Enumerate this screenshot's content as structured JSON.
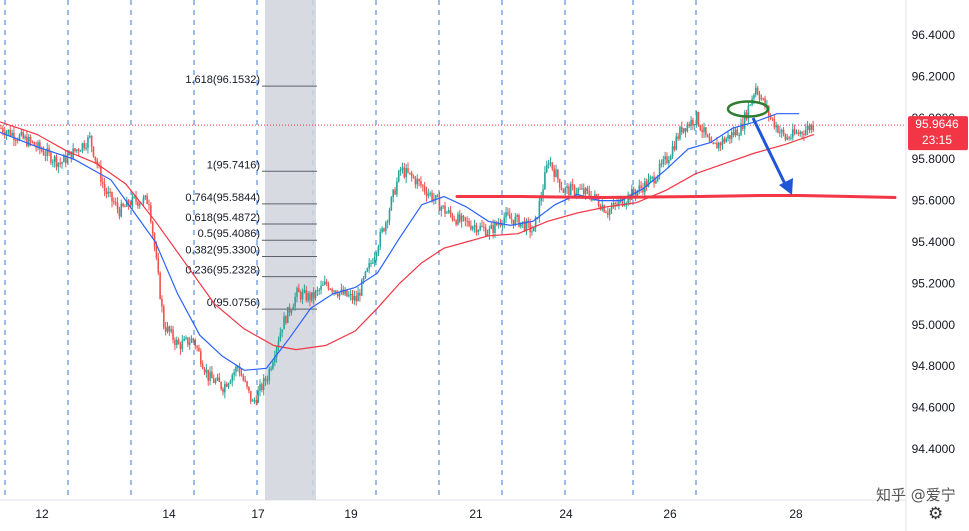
{
  "chart_data": {
    "type": "candlestick",
    "y_axis": {
      "ticks": [
        "96.4000",
        "96.2000",
        "96.0000",
        "95.8000",
        "95.6000",
        "95.4000",
        "95.2000",
        "95.0000",
        "94.8000",
        "94.6000",
        "94.4000"
      ],
      "ylim": [
        94.28,
        96.55
      ]
    },
    "x_axis": {
      "ticks": [
        "12",
        "14",
        "17",
        "19",
        "21",
        "24",
        "26",
        "28"
      ]
    },
    "current_price": {
      "value": "95.9646",
      "countdown": "23:15",
      "level": 95.9646
    },
    "fibonacci": [
      {
        "label": "1.618(96.1532)",
        "value": 96.1532
      },
      {
        "label": "1(95.7416)",
        "value": 95.7416
      },
      {
        "label": "0.764(95.5844)",
        "value": 95.5844
      },
      {
        "label": "0.618(95.4872)",
        "value": 95.4872
      },
      {
        "label": "0.5(95.4086)",
        "value": 95.4086
      },
      {
        "label": "0.382(95.3300)",
        "value": 95.33
      },
      {
        "label": "0.236(95.2328)",
        "value": 95.2328
      },
      {
        "label": "0(95.0756)",
        "value": 95.0756
      }
    ],
    "horizontal_level": 95.62,
    "price_path": [
      [
        0,
        95.95
      ],
      [
        4,
        95.88
      ],
      [
        8,
        95.78
      ],
      [
        12,
        95.9
      ],
      [
        14,
        95.65
      ],
      [
        16,
        95.55
      ],
      [
        18,
        95.6
      ],
      [
        20,
        95.6
      ],
      [
        22,
        95.0
      ],
      [
        24,
        94.9
      ],
      [
        26,
        94.93
      ],
      [
        28,
        94.75
      ],
      [
        30,
        94.7
      ],
      [
        32,
        94.8
      ],
      [
        34,
        94.62
      ],
      [
        36,
        94.75
      ],
      [
        38,
        95.0
      ],
      [
        40,
        95.15
      ],
      [
        42,
        95.13
      ],
      [
        44,
        95.2
      ],
      [
        46,
        95.15
      ],
      [
        48,
        95.12
      ],
      [
        50,
        95.3
      ],
      [
        52,
        95.5
      ],
      [
        54,
        95.75
      ],
      [
        56,
        95.7
      ],
      [
        58,
        95.63
      ],
      [
        60,
        95.55
      ],
      [
        62,
        95.5
      ],
      [
        64,
        95.48
      ],
      [
        66,
        95.45
      ],
      [
        68,
        95.52
      ],
      [
        70,
        95.5
      ],
      [
        72,
        95.45
      ],
      [
        74,
        95.8
      ],
      [
        76,
        95.65
      ],
      [
        78,
        95.65
      ],
      [
        80,
        95.62
      ],
      [
        82,
        95.55
      ],
      [
        84,
        95.6
      ],
      [
        86,
        95.65
      ],
      [
        88,
        95.7
      ],
      [
        90,
        95.8
      ],
      [
        92,
        95.95
      ],
      [
        94,
        96.0
      ],
      [
        96,
        95.85
      ],
      [
        98,
        95.9
      ],
      [
        100,
        95.95
      ],
      [
        102,
        96.15
      ],
      [
        104,
        96.0
      ],
      [
        106,
        95.9
      ],
      [
        108,
        95.93
      ],
      [
        110,
        95.97
      ]
    ],
    "ma_fast": [
      [
        0,
        95.93
      ],
      [
        5,
        95.86
      ],
      [
        10,
        95.8
      ],
      [
        15,
        95.7
      ],
      [
        18,
        95.55
      ],
      [
        21,
        95.4
      ],
      [
        24,
        95.15
      ],
      [
        27,
        94.95
      ],
      [
        30,
        94.85
      ],
      [
        33,
        94.78
      ],
      [
        36,
        94.79
      ],
      [
        39,
        94.93
      ],
      [
        42,
        95.08
      ],
      [
        45,
        95.15
      ],
      [
        48,
        95.18
      ],
      [
        51,
        95.25
      ],
      [
        54,
        95.42
      ],
      [
        57,
        95.58
      ],
      [
        60,
        95.62
      ],
      [
        63,
        95.57
      ],
      [
        66,
        95.5
      ],
      [
        69,
        95.48
      ],
      [
        72,
        95.5
      ],
      [
        75,
        95.58
      ],
      [
        78,
        95.63
      ],
      [
        81,
        95.6
      ],
      [
        84,
        95.6
      ],
      [
        87,
        95.66
      ],
      [
        90,
        95.75
      ],
      [
        93,
        95.85
      ],
      [
        96,
        95.88
      ],
      [
        99,
        95.95
      ],
      [
        102,
        95.98
      ],
      [
        105,
        96.02
      ],
      [
        108,
        96.02
      ]
    ],
    "ma_slow": [
      [
        0,
        95.98
      ],
      [
        5,
        95.92
      ],
      [
        9,
        95.84
      ],
      [
        13,
        95.78
      ],
      [
        17,
        95.68
      ],
      [
        21,
        95.5
      ],
      [
        25,
        95.3
      ],
      [
        29,
        95.1
      ],
      [
        33,
        94.98
      ],
      [
        37,
        94.9
      ],
      [
        40,
        94.88
      ],
      [
        44,
        94.9
      ],
      [
        48,
        94.97
      ],
      [
        51,
        95.08
      ],
      [
        54,
        95.2
      ],
      [
        57,
        95.3
      ],
      [
        60,
        95.37
      ],
      [
        63,
        95.4
      ],
      [
        66,
        95.43
      ],
      [
        70,
        95.44
      ],
      [
        74,
        95.5
      ],
      [
        78,
        95.54
      ],
      [
        82,
        95.57
      ],
      [
        86,
        95.59
      ],
      [
        90,
        95.65
      ],
      [
        94,
        95.73
      ],
      [
        98,
        95.78
      ],
      [
        102,
        95.83
      ],
      [
        106,
        95.87
      ],
      [
        110,
        95.92
      ]
    ]
  },
  "controls": {
    "watermark": "知乎 @爱宁",
    "gear_icon": "gear-icon"
  },
  "colors": {
    "bull": "#26a69a",
    "bear": "#ef5350",
    "ma_fast": "#2962ff",
    "ma_slow": "#f23645",
    "level_line": "#f23645",
    "price_tag": "#f23645",
    "arrow": "#1e56d6",
    "ellipse": "#2e7d32",
    "vertical_grid": "#3b78d8"
  }
}
